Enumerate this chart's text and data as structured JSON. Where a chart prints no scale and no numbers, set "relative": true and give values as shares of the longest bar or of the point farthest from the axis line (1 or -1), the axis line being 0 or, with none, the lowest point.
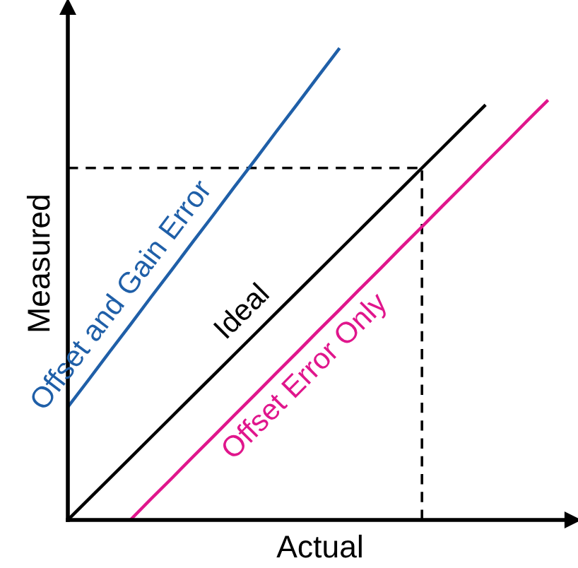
{
  "chart_data": {
    "type": "line",
    "relative": true,
    "xlabel": "Actual",
    "ylabel": "Measured",
    "legend": false,
    "marker": "none",
    "line_style": "solid",
    "categories": [
      null,
      null,
      null,
      null,
      null,
      null,
      null,
      null,
      null,
      null,
      null,
      null,
      null,
      null,
      null,
      null,
      null,
      null,
      null,
      null,
      null,
      null,
      null,
      null
    ],
    "series": [
      {
        "name": "Offset and Gain Error",
        "color": "#1f5fa8",
        "values": [
          0.24,
          0.298,
          0.357,
          0.415,
          0.474,
          0.532,
          0.591,
          0.649,
          0.708,
          0.766,
          0.825,
          0.883,
          0.942,
          1.0,
          null,
          null,
          null,
          null,
          null,
          null,
          null,
          null,
          null,
          null
        ]
      },
      {
        "name": "Ideal",
        "color": "#000000",
        "values": [
          0,
          0.044,
          0.088,
          0.132,
          0.176,
          0.22,
          0.264,
          0.308,
          0.352,
          0.396,
          0.44,
          0.484,
          0.528,
          0.572,
          0.616,
          0.66,
          0.704,
          0.748,
          0.792,
          0.836,
          0.88,
          null,
          null,
          null
        ]
      },
      {
        "name": "Offset Error Only",
        "color": "#e0168c",
        "values": [
          null,
          null,
          null,
          0,
          0.045,
          0.089,
          0.134,
          0.178,
          0.223,
          0.267,
          0.312,
          0.356,
          0.401,
          0.445,
          0.49,
          0.534,
          0.579,
          0.623,
          0.668,
          0.712,
          0.757,
          0.801,
          0.846,
          0.89
        ]
      }
    ],
    "ref_lines": [
      {
        "axis": "y",
        "value": 0.748,
        "color": "#000000",
        "line_style": "dashed"
      }
    ]
  }
}
